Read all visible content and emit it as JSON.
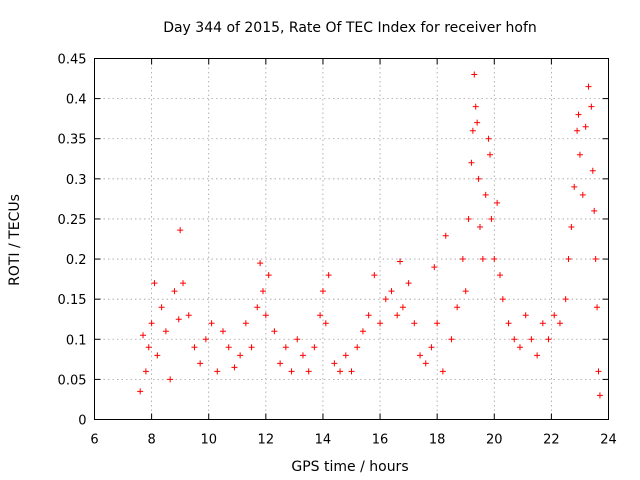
{
  "chart_data": {
    "type": "scatter",
    "title": "Day 344 of 2015, Rate Of TEC Index for receiver hofn",
    "xlabel": "GPS time / hours",
    "ylabel": "ROTI / TECUs",
    "xlim": [
      6,
      24
    ],
    "ylim": [
      0,
      0.45
    ],
    "xticks": [
      "6",
      "8",
      "10",
      "12",
      "14",
      "16",
      "18",
      "20",
      "22",
      "24"
    ],
    "yticks": [
      "0",
      "0.05",
      "0.1",
      "0.15",
      "0.2",
      "0.25",
      "0.3",
      "0.35",
      "0.4",
      "0.45"
    ],
    "grid": true,
    "marker": "plus",
    "color": "#ff0000",
    "points": [
      [
        7.6,
        0.035
      ],
      [
        7.7,
        0.105
      ],
      [
        7.8,
        0.06
      ],
      [
        7.9,
        0.09
      ],
      [
        8.0,
        0.12
      ],
      [
        8.1,
        0.17
      ],
      [
        8.2,
        0.08
      ],
      [
        8.35,
        0.14
      ],
      [
        8.5,
        0.11
      ],
      [
        8.65,
        0.05
      ],
      [
        8.8,
        0.16
      ],
      [
        8.95,
        0.125
      ],
      [
        9.0,
        0.236
      ],
      [
        9.1,
        0.17
      ],
      [
        9.3,
        0.13
      ],
      [
        9.5,
        0.09
      ],
      [
        9.7,
        0.07
      ],
      [
        9.9,
        0.1
      ],
      [
        10.1,
        0.12
      ],
      [
        10.3,
        0.06
      ],
      [
        10.5,
        0.11
      ],
      [
        10.7,
        0.09
      ],
      [
        10.9,
        0.065
      ],
      [
        11.1,
        0.08
      ],
      [
        11.3,
        0.12
      ],
      [
        11.5,
        0.09
      ],
      [
        11.7,
        0.14
      ],
      [
        11.8,
        0.195
      ],
      [
        11.9,
        0.16
      ],
      [
        12.0,
        0.13
      ],
      [
        12.1,
        0.18
      ],
      [
        12.3,
        0.11
      ],
      [
        12.5,
        0.07
      ],
      [
        12.7,
        0.09
      ],
      [
        12.9,
        0.06
      ],
      [
        13.1,
        0.1
      ],
      [
        13.3,
        0.08
      ],
      [
        13.5,
        0.06
      ],
      [
        13.7,
        0.09
      ],
      [
        13.9,
        0.13
      ],
      [
        14.0,
        0.16
      ],
      [
        14.1,
        0.12
      ],
      [
        14.2,
        0.18
      ],
      [
        14.4,
        0.07
      ],
      [
        14.6,
        0.06
      ],
      [
        14.8,
        0.08
      ],
      [
        15.0,
        0.06
      ],
      [
        15.2,
        0.09
      ],
      [
        15.4,
        0.11
      ],
      [
        15.6,
        0.13
      ],
      [
        15.8,
        0.18
      ],
      [
        16.0,
        0.12
      ],
      [
        16.2,
        0.15
      ],
      [
        16.4,
        0.16
      ],
      [
        16.6,
        0.13
      ],
      [
        16.7,
        0.197
      ],
      [
        16.8,
        0.14
      ],
      [
        17.0,
        0.17
      ],
      [
        17.2,
        0.12
      ],
      [
        17.4,
        0.08
      ],
      [
        17.6,
        0.07
      ],
      [
        17.8,
        0.09
      ],
      [
        17.9,
        0.19
      ],
      [
        18.0,
        0.12
      ],
      [
        18.2,
        0.06
      ],
      [
        18.3,
        0.229
      ],
      [
        18.5,
        0.1
      ],
      [
        18.7,
        0.14
      ],
      [
        18.9,
        0.2
      ],
      [
        19.0,
        0.16
      ],
      [
        19.1,
        0.25
      ],
      [
        19.2,
        0.32
      ],
      [
        19.25,
        0.36
      ],
      [
        19.3,
        0.43
      ],
      [
        19.35,
        0.39
      ],
      [
        19.4,
        0.37
      ],
      [
        19.45,
        0.3
      ],
      [
        19.5,
        0.24
      ],
      [
        19.6,
        0.2
      ],
      [
        19.7,
        0.28
      ],
      [
        19.8,
        0.35
      ],
      [
        19.85,
        0.33
      ],
      [
        19.9,
        0.25
      ],
      [
        20.0,
        0.2
      ],
      [
        20.1,
        0.27
      ],
      [
        20.2,
        0.18
      ],
      [
        20.3,
        0.15
      ],
      [
        20.5,
        0.12
      ],
      [
        20.7,
        0.1
      ],
      [
        20.9,
        0.09
      ],
      [
        21.1,
        0.13
      ],
      [
        21.3,
        0.1
      ],
      [
        21.5,
        0.08
      ],
      [
        21.7,
        0.12
      ],
      [
        21.9,
        0.1
      ],
      [
        22.1,
        0.13
      ],
      [
        22.3,
        0.12
      ],
      [
        22.5,
        0.15
      ],
      [
        22.6,
        0.2
      ],
      [
        22.7,
        0.24
      ],
      [
        22.8,
        0.29
      ],
      [
        22.9,
        0.36
      ],
      [
        22.95,
        0.38
      ],
      [
        23.0,
        0.33
      ],
      [
        23.1,
        0.28
      ],
      [
        23.2,
        0.365
      ],
      [
        23.3,
        0.415
      ],
      [
        23.4,
        0.39
      ],
      [
        23.45,
        0.31
      ],
      [
        23.5,
        0.26
      ],
      [
        23.55,
        0.2
      ],
      [
        23.6,
        0.14
      ],
      [
        23.65,
        0.06
      ],
      [
        23.7,
        0.03
      ]
    ]
  }
}
